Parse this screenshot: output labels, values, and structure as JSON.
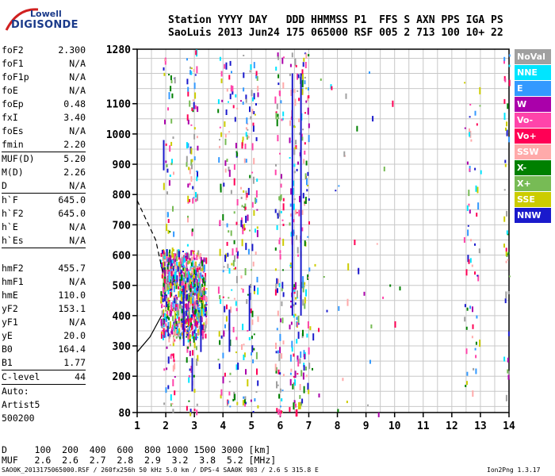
{
  "logo": {
    "line1": "Lowell",
    "line2": "DIGISONDE"
  },
  "header": {
    "line1": "Station YYYY DAY   DDD HHMMSS P1  FFS S AXN PPS IGA PS",
    "line2": "SaoLuis 2013 Jun24 175 065000 RSF 005 2 713 100 10+ 22"
  },
  "params": {
    "g1": [
      [
        "foF2",
        "2.300"
      ],
      [
        "foF1",
        "N/A"
      ],
      [
        "foF1p",
        "N/A"
      ],
      [
        "foE",
        "N/A"
      ],
      [
        "foEp",
        "0.48"
      ],
      [
        "fxI",
        "3.40"
      ],
      [
        "foEs",
        "N/A"
      ],
      [
        "fmin",
        "2.20"
      ]
    ],
    "g2": [
      [
        "MUF(D)",
        "5.20"
      ],
      [
        "M(D)",
        "2.26"
      ],
      [
        "D",
        "N/A"
      ]
    ],
    "g3": [
      [
        "h`F",
        "645.0"
      ],
      [
        "h`F2",
        "645.0"
      ],
      [
        "h`E",
        "N/A"
      ],
      [
        "h`Es",
        "N/A"
      ]
    ],
    "g4": [
      [
        "hmF2",
        "455.7"
      ],
      [
        "hmF1",
        "N/A"
      ],
      [
        "hmE",
        "110.0"
      ],
      [
        "yF2",
        "153.1"
      ],
      [
        "yF1",
        "N/A"
      ],
      [
        "yE",
        "20.0"
      ],
      [
        "B0",
        "164.4"
      ],
      [
        "B1",
        "1.77"
      ]
    ],
    "g5": [
      [
        "C-level",
        "44"
      ]
    ]
  },
  "auto": {
    "line1": "Auto:",
    "line2": "Artist5",
    "line3": "500200"
  },
  "legend": [
    {
      "label": "NoVal",
      "color": "#a0a0a0"
    },
    {
      "label": "NNE",
      "color": "#00e5ff"
    },
    {
      "label": "E",
      "color": "#3399ff"
    },
    {
      "label": "W",
      "color": "#aa00aa"
    },
    {
      "label": "Vo-",
      "color": "#ff44aa"
    },
    {
      "label": "Vo+",
      "color": "#ff0055"
    },
    {
      "label": "SSW",
      "color": "#ffaaaa"
    },
    {
      "label": "X-",
      "color": "#008000"
    },
    {
      "label": "X+",
      "color": "#77bb55"
    },
    {
      "label": "SSE",
      "color": "#cccc00"
    },
    {
      "label": "NNW",
      "color": "#1a1acc"
    }
  ],
  "muf_table": {
    "d_line": "D     100  200  400  600  800 1000 1500 3000 [km]",
    "muf_line": "MUF   2.6  2.6  2.7  2.8  2.9  3.2  3.8  5.2 [MHz]"
  },
  "footer": "SAO0K_2013175065000.RSF / 260fx256h 50 kHz 5.0 km / DPS-4 SAA0K 903 / 2.6 S 315.8 E",
  "version": "Ion2Png 1.3.17",
  "chart_data": {
    "type": "scatter",
    "x_range": [
      1,
      14
    ],
    "y_range": [
      80,
      1280
    ],
    "x_ticks": [
      1,
      2,
      3,
      4,
      5,
      6,
      7,
      8,
      9,
      10,
      11,
      12,
      13,
      14
    ],
    "y_ticks": [
      80,
      200,
      300,
      400,
      500,
      600,
      700,
      800,
      900,
      1000,
      1100,
      1280
    ],
    "grid": true,
    "traces_colors": [
      "#1a1acc",
      "#aa00aa",
      "#ff0055",
      "#ff44aa",
      "#ffaaaa",
      "#008000",
      "#77bb55",
      "#3399ff",
      "#00e5ff",
      "#cccc00",
      "#a0a0a0"
    ],
    "clusters": [
      {
        "x": [
          1.8,
          3.4
        ],
        "y": [
          330,
          620
        ],
        "n": 700
      },
      {
        "x": [
          2.5,
          3.3
        ],
        "y": [
          380,
          560
        ],
        "n": 160
      },
      {
        "x": [
          1.9,
          2.3
        ],
        "y": [
          80,
          1280
        ],
        "n": 80
      },
      {
        "x": [
          2.7,
          3.1
        ],
        "y": [
          80,
          1280
        ],
        "n": 110
      },
      {
        "x": [
          3.8,
          4.5
        ],
        "y": [
          80,
          1280
        ],
        "n": 120
      },
      {
        "x": [
          4.6,
          5.2
        ],
        "y": [
          80,
          1280
        ],
        "n": 130
      },
      {
        "x": [
          5.8,
          6.1
        ],
        "y": [
          80,
          1280
        ],
        "n": 90
      },
      {
        "x": [
          6.3,
          7.0
        ],
        "y": [
          80,
          1280
        ],
        "n": 200
      },
      {
        "x": [
          7.0,
          10.5
        ],
        "y": [
          80,
          1280
        ],
        "n": 40
      },
      {
        "x": [
          12.4,
          13.0
        ],
        "y": [
          150,
          1200
        ],
        "n": 60
      },
      {
        "x": [
          13.8,
          14.0
        ],
        "y": [
          80,
          1280
        ],
        "n": 40
      }
    ],
    "vlines": [
      {
        "x": 1.9,
        "y": [
          880,
          980
        ]
      },
      {
        "x": 2.6,
        "y": [
          300,
          500
        ]
      },
      {
        "x": 2.9,
        "y": [
          150,
          260
        ]
      },
      {
        "x": 4.2,
        "y": [
          280,
          420
        ]
      },
      {
        "x": 4.9,
        "y": [
          350,
          500
        ]
      },
      {
        "x": 6.4,
        "y": [
          400,
          1200
        ]
      },
      {
        "x": 6.7,
        "y": [
          400,
          1200
        ]
      },
      {
        "x": 3.2,
        "y": [
          280,
          400
        ]
      }
    ],
    "dashed_curve": {
      "x": [
        1.0,
        1.65,
        1.9
      ],
      "y": [
        780,
        650,
        540
      ]
    },
    "solid_curve": {
      "x": [
        1.0,
        1.45,
        1.85
      ],
      "y": [
        280,
        330,
        400
      ]
    }
  }
}
